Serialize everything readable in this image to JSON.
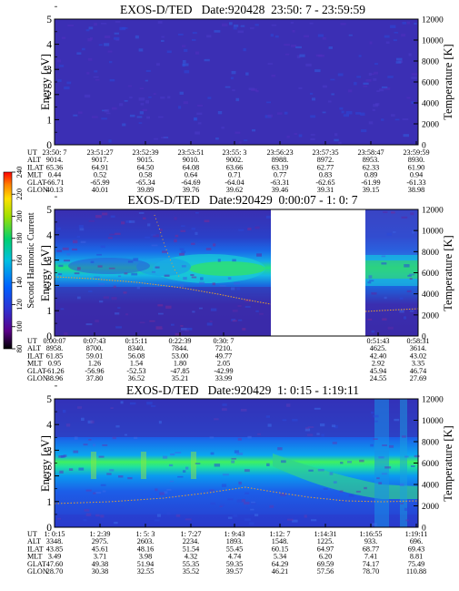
{
  "panels": [
    {
      "title": "EXOS-D/TED   Date:920428  23:50: 7 - 23:59:59",
      "ylabel_left": "Energy [eV]",
      "ylabel_right": "Temperature [K]",
      "left_ticks": [
        "0",
        "1",
        "2",
        "3",
        "4",
        "5"
      ],
      "right_ticks": [
        "0",
        "2000",
        "4000",
        "6000",
        "8000",
        "10000",
        "12000"
      ],
      "row_names": [
        "UT",
        "ALT",
        "ILAT",
        "MLT",
        "GLAT",
        "GLON"
      ],
      "columns": [
        [
          "23:50: 7",
          "9014.",
          "65.36",
          "0.44",
          "-66.71",
          "40.13"
        ],
        [
          "23:51:27",
          "9017.",
          "64.91",
          "0.52",
          "-65.99",
          "40.01"
        ],
        [
          "23:52:39",
          "9015.",
          "64.50",
          "0.58",
          "-65.34",
          "39.89"
        ],
        [
          "23:53:51",
          "9010.",
          "64.08",
          "0.64",
          "-64.69",
          "39.76"
        ],
        [
          "23:55: 3",
          "9002.",
          "63.66",
          "0.71",
          "-64.04",
          "39.62"
        ],
        [
          "23:56:23",
          "8988.",
          "63.19",
          "0.77",
          "-63.31",
          "39.46"
        ],
        [
          "23:57:35",
          "8972.",
          "62.77",
          "0.83",
          "-62.65",
          "39.31"
        ],
        [
          "23:58:47",
          "8953.",
          "62.33",
          "0.89",
          "-61.99",
          "39.15"
        ],
        [
          "23:59:59",
          "8930.",
          "61.90",
          "0.94",
          "-61.33",
          "38.98"
        ]
      ]
    },
    {
      "title": "EXOS-D/TED   Date:920429  0:00:07 - 1: 0: 7",
      "ylabel_left": "Energy [eV]",
      "ylabel_right": "Temperature [K]",
      "left_ticks": [
        "0",
        "1",
        "2",
        "3",
        "4",
        "5"
      ],
      "right_ticks": [
        "0",
        "2000",
        "4000",
        "6000",
        "8000",
        "10000",
        "12000"
      ],
      "row_names": [
        "UT",
        "ALT",
        "ILAT",
        "MLT",
        "GLAT",
        "GLON"
      ],
      "columns": [
        [
          "0:00:07",
          "8958.",
          "61.85",
          "0.95",
          "-61.26",
          "38.96"
        ],
        [
          "0:07:43",
          "8700.",
          "59.01",
          "1.26",
          "-56.96",
          "37.80"
        ],
        [
          "0:15:11",
          "8340.",
          "56.08",
          "1.54",
          "-52.53",
          "36.52"
        ],
        [
          "0:22:39",
          "7844.",
          "53.00",
          "1.80",
          "-47.85",
          "35.21"
        ],
        [
          "0:30: 7",
          "7210.",
          "49.77",
          "2.05",
          "-42.99",
          "33.99"
        ],
        [
          "0:51:43",
          "4625.",
          "42.40",
          "2.92",
          "45.94",
          "24.55"
        ],
        [
          "0:58:31",
          "3614.",
          "43.02",
          "3.35",
          "46.74",
          "27.69"
        ]
      ]
    },
    {
      "title": "EXOS-D/TED   Date:920429  1: 0:15 - 1:19:11",
      "ylabel_left": "Energy [eV]",
      "ylabel_right": "Temperature [K]",
      "left_ticks": [
        "0",
        "1",
        "2",
        "3",
        "4",
        "5"
      ],
      "right_ticks": [
        "0",
        "2000",
        "4000",
        "6000",
        "8000",
        "10000",
        "12000"
      ],
      "row_names": [
        "UT",
        "ALT",
        "ILAT",
        "MLT",
        "GLAT",
        "GLON"
      ],
      "columns": [
        [
          "1: 0:15",
          "3348.",
          "43.85",
          "3.49",
          "47.60",
          "28.70"
        ],
        [
          "1: 2:39",
          "2975.",
          "45.61",
          "3.71",
          "49.38",
          "30.38"
        ],
        [
          "1: 5: 3",
          "2603.",
          "48.16",
          "3.98",
          "51.94",
          "32.55"
        ],
        [
          "1: 7:27",
          "2234.",
          "51.54",
          "4.32",
          "55.35",
          "35.52"
        ],
        [
          "1: 9:43",
          "1893.",
          "55.45",
          "4.74",
          "59.35",
          "39.57"
        ],
        [
          "1:12: 7",
          "1548.",
          "60.15",
          "5.34",
          "64.29",
          "46.21"
        ],
        [
          "1:14:31",
          "1225.",
          "64.97",
          "6.20",
          "69.59",
          "57.56"
        ],
        [
          "1:16:55",
          "933.",
          "68.77",
          "7.41",
          "74.17",
          "78.70"
        ],
        [
          "1:19:11",
          "696.",
          "69.43",
          "8.81",
          "75.49",
          "110.88"
        ]
      ]
    }
  ],
  "colorbar": {
    "label": "Second Harmonic Current",
    "ticks": [
      "80",
      "100",
      "120",
      "140",
      "160",
      "180",
      "200",
      "220",
      "240"
    ]
  },
  "chart_data": [
    {
      "type": "heatmap",
      "title": "EXOS-D/TED   Date:920428  23:50: 7 - 23:59:59",
      "xlabel": "UT",
      "ylabel": "Energy [eV]",
      "ylabel_right": "Temperature [K]",
      "ylim": [
        0,
        5
      ],
      "ylim_right": [
        0,
        12000
      ],
      "x": [
        "23:50: 7",
        "23:51:27",
        "23:52:39",
        "23:53:51",
        "23:55: 3",
        "23:56:23",
        "23:57:35",
        "23:58:47",
        "23:59:59"
      ],
      "description_level": "uniform low (~90)"
    },
    {
      "type": "heatmap",
      "title": "EXOS-D/TED   Date:920429  0:00:07 - 1: 0: 7",
      "xlabel": "UT",
      "ylabel": "Energy [eV]",
      "ylabel_right": "Temperature [K]",
      "ylim": [
        0,
        5
      ],
      "ylim_right": [
        0,
        12000
      ],
      "x": [
        "0:00:07",
        "0:07:43",
        "0:15:11",
        "0:22:39",
        "0:30: 7",
        "0:51:43",
        "0:58:31"
      ],
      "data_gap": [
        "0:35",
        "0:50"
      ],
      "peak_energy_eV": 2.5
    },
    {
      "type": "heatmap",
      "title": "EXOS-D/TED   Date:920429  1: 0:15 - 1:19:11",
      "xlabel": "UT",
      "ylabel": "Energy [eV]",
      "ylabel_right": "Temperature [K]",
      "ylim": [
        0,
        5
      ],
      "ylim_right": [
        0,
        12000
      ],
      "x": [
        "1: 0:15",
        "1: 2:39",
        "1: 5: 3",
        "1: 7:27",
        "1: 9:43",
        "1:12: 7",
        "1:14:31",
        "1:16:55",
        "1:19:11"
      ],
      "peak_energy_eV": 2.3
    }
  ]
}
